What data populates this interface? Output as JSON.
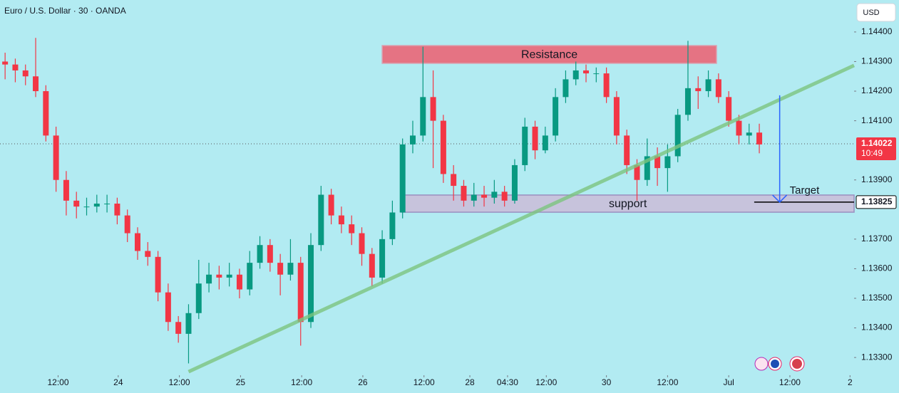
{
  "chart_data": {
    "type": "candlestick",
    "title": "Euro / U.S. Dollar · 30 · OANDA",
    "currency": "USD",
    "open": [
      1.143,
      1.1429,
      1.1427,
      1.1425,
      1.142,
      1.1405,
      1.139,
      1.1383,
      1.1381,
      1.1381,
      1.1382,
      1.1382,
      1.1378,
      1.1372,
      1.1366,
      1.1364,
      1.1352,
      1.1342,
      1.1338,
      1.1345,
      1.1355,
      1.1358,
      1.1357,
      1.1358,
      1.1353,
      1.1362,
      1.1368,
      1.1362,
      1.1358,
      1.1362,
      1.1342,
      1.1368,
      1.1385,
      1.1378,
      1.1375,
      1.1372,
      1.1365,
      1.1357,
      1.137,
      1.1379,
      1.1402,
      1.1405,
      1.1418,
      1.141,
      1.1392,
      1.1388,
      1.1383,
      1.1385,
      1.1384,
      1.1386,
      1.1383,
      1.1395,
      1.1408,
      1.14,
      1.1405,
      1.1418,
      1.1424,
      1.1427,
      1.1426,
      1.1426,
      1.1418,
      1.1405,
      1.1395,
      1.139,
      1.1398,
      1.1394,
      1.1398,
      1.1412,
      1.1421,
      1.142,
      1.1424,
      1.1418,
      1.141,
      1.1405,
      1.1406
    ],
    "high": [
      1.1433,
      1.1431,
      1.1429,
      1.1438,
      1.1422,
      1.1408,
      1.1393,
      1.1386,
      1.1384,
      1.1385,
      1.1385,
      1.1384,
      1.138,
      1.1374,
      1.1369,
      1.1366,
      1.1355,
      1.1344,
      1.1348,
      1.1363,
      1.1362,
      1.1361,
      1.1362,
      1.136,
      1.1366,
      1.1371,
      1.137,
      1.1365,
      1.137,
      1.1364,
      1.1372,
      1.1388,
      1.1387,
      1.1381,
      1.1378,
      1.1374,
      1.1367,
      1.1373,
      1.1383,
      1.1404,
      1.141,
      1.1435,
      1.1427,
      1.1412,
      1.1395,
      1.139,
      1.1389,
      1.1388,
      1.139,
      1.1388,
      1.1397,
      1.1411,
      1.141,
      1.1408,
      1.1421,
      1.1427,
      1.143,
      1.1429,
      1.1428,
      1.1428,
      1.142,
      1.1407,
      1.1397,
      1.1404,
      1.1401,
      1.1402,
      1.1414,
      1.1437,
      1.1425,
      1.1427,
      1.1426,
      1.142,
      1.1412,
      1.1409,
      1.1409
    ],
    "low": [
      1.1424,
      1.1423,
      1.1422,
      1.1418,
      1.1403,
      1.1386,
      1.1378,
      1.1377,
      1.1378,
      1.1379,
      1.1379,
      1.1375,
      1.1369,
      1.1363,
      1.1361,
      1.1349,
      1.1339,
      1.1335,
      1.1328,
      1.1343,
      1.1352,
      1.1353,
      1.1354,
      1.135,
      1.1351,
      1.136,
      1.1359,
      1.1351,
      1.1356,
      1.1334,
      1.134,
      1.1366,
      1.1375,
      1.1372,
      1.1368,
      1.1361,
      1.1354,
      1.1355,
      1.1368,
      1.1377,
      1.1399,
      1.1403,
      1.1394,
      1.1389,
      1.1383,
      1.1381,
      1.1381,
      1.1381,
      1.1382,
      1.1381,
      1.1382,
      1.1393,
      1.1397,
      1.1399,
      1.1403,
      1.1416,
      1.1422,
      1.1423,
      1.1423,
      1.1416,
      1.1402,
      1.1392,
      1.1383,
      1.1388,
      1.1388,
      1.1386,
      1.1396,
      1.141,
      1.1414,
      1.1418,
      1.1416,
      1.1408,
      1.1402,
      1.1402,
      1.1399
    ],
    "close": [
      1.1429,
      1.1427,
      1.1425,
      1.142,
      1.1405,
      1.139,
      1.1383,
      1.1381,
      1.1381,
      1.1382,
      1.1382,
      1.1378,
      1.1372,
      1.1366,
      1.1364,
      1.1352,
      1.1342,
      1.1338,
      1.1345,
      1.1355,
      1.1358,
      1.1357,
      1.1358,
      1.1353,
      1.1362,
      1.1368,
      1.1362,
      1.1358,
      1.1362,
      1.1342,
      1.1368,
      1.1385,
      1.1378,
      1.1375,
      1.1372,
      1.1365,
      1.1357,
      1.137,
      1.1379,
      1.1402,
      1.1405,
      1.1418,
      1.141,
      1.1392,
      1.1388,
      1.1383,
      1.1385,
      1.1384,
      1.1386,
      1.1383,
      1.1395,
      1.1408,
      1.14,
      1.1405,
      1.1418,
      1.1424,
      1.1427,
      1.1426,
      1.1426,
      1.1418,
      1.1405,
      1.1395,
      1.139,
      1.1398,
      1.1394,
      1.1398,
      1.1412,
      1.1421,
      1.142,
      1.1424,
      1.1418,
      1.141,
      1.1405,
      1.1406,
      1.1402
    ],
    "up_color": "#089981",
    "down_color": "#f23645",
    "xlim": [
      -0.5,
      83.3
    ],
    "ylim": [
      1.13245,
      1.14508
    ],
    "xticks": [
      {
        "value": 5.2,
        "label": "12:00"
      },
      {
        "value": 11.1,
        "label": "24"
      },
      {
        "value": 17.1,
        "label": "12:00"
      },
      {
        "value": 23.1,
        "label": "25"
      },
      {
        "value": 29.1,
        "label": "12:00"
      },
      {
        "value": 35.1,
        "label": "26"
      },
      {
        "value": 41.1,
        "label": "12:00"
      },
      {
        "value": 45.6,
        "label": "28"
      },
      {
        "value": 49.3,
        "label": "04:30"
      },
      {
        "value": 53.1,
        "label": "12:00"
      },
      {
        "value": 59.0,
        "label": "30"
      },
      {
        "value": 65.0,
        "label": "12:00"
      },
      {
        "value": 71.0,
        "label": "Jul"
      },
      {
        "value": 77.0,
        "label": "12:00"
      },
      {
        "value": 82.9,
        "label": "2"
      }
    ],
    "yticks": [
      {
        "value": 1.144,
        "label": "1.14400"
      },
      {
        "value": 1.143,
        "label": "1.14300"
      },
      {
        "value": 1.142,
        "label": "1.14200"
      },
      {
        "value": 1.141,
        "label": "1.14100"
      },
      {
        "value": 1.139,
        "label": "1.13900"
      },
      {
        "value": 1.137,
        "label": "1.13700"
      },
      {
        "value": 1.136,
        "label": "1.13600"
      },
      {
        "value": 1.135,
        "label": "1.13500"
      },
      {
        "value": 1.134,
        "label": "1.13400"
      },
      {
        "value": 1.133,
        "label": "1.13300"
      }
    ],
    "last_price": {
      "value": 1.14022,
      "countdown": "10:49",
      "color": "#f23645"
    },
    "resistance": {
      "label": "Resistance",
      "x": [
        37.0,
        69.8
      ],
      "y": [
        1.14294,
        1.14354
      ],
      "color": "#e57383"
    },
    "support": {
      "label": "support",
      "x": [
        38.9,
        83.3
      ],
      "y": [
        1.13791,
        1.13849
      ],
      "color": "#c7c3dc"
    },
    "trendline": {
      "x": [
        18.0,
        83.3
      ],
      "y": [
        1.13252,
        1.14287
      ],
      "color": "#7cc47e"
    },
    "target": {
      "label": "Target",
      "value": 1.13825,
      "arrow_from": 1.14186,
      "arrow_x": 76.0,
      "line_x": [
        73.5,
        83.3
      ],
      "arrow_color": "#2962ff"
    }
  }
}
